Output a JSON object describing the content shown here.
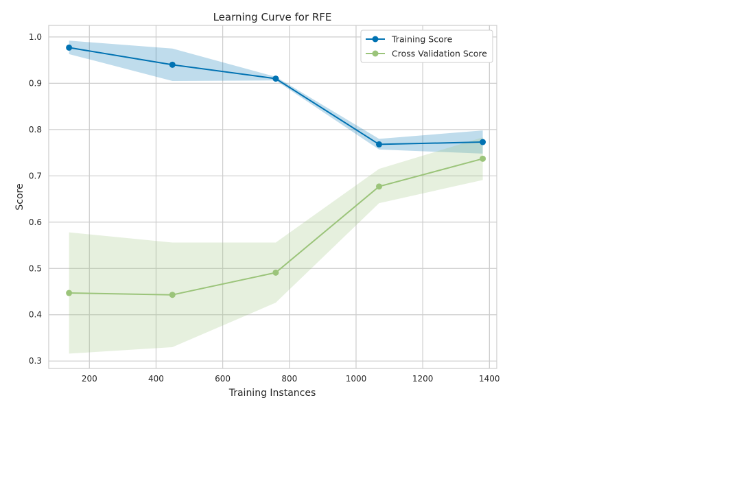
{
  "chart_data": {
    "type": "line",
    "title": "Learning Curve for RFE",
    "xlabel": "Training Instances",
    "ylabel": "Score",
    "xlim": [
      78,
      1422
    ],
    "ylim": [
      0.284,
      1.025
    ],
    "xticks": [
      200,
      400,
      600,
      800,
      1000,
      1200,
      1400
    ],
    "yticks": [
      0.3,
      0.4,
      0.5,
      0.6,
      0.7,
      0.8,
      0.9,
      1.0
    ],
    "xtick_labels": [
      "200",
      "400",
      "600",
      "800",
      "1000",
      "1200",
      "1400"
    ],
    "ytick_labels": [
      "0.3",
      "0.4",
      "0.5",
      "0.6",
      "0.7",
      "0.8",
      "0.9",
      "1.0"
    ],
    "grid": true,
    "legend_position": "top-right",
    "x": [
      139,
      449,
      759,
      1069,
      1380
    ],
    "series": [
      {
        "name": "Training Score",
        "color": "#0072b2",
        "values": [
          0.977,
          0.94,
          0.91,
          0.768,
          0.773
        ],
        "band_upper": [
          0.992,
          0.975,
          0.914,
          0.78,
          0.798
        ],
        "band_lower": [
          0.963,
          0.905,
          0.906,
          0.757,
          0.748
        ]
      },
      {
        "name": "Cross Validation Score",
        "color": "#9bc47a",
        "values": [
          0.447,
          0.443,
          0.491,
          0.677,
          0.737
        ],
        "band_upper": [
          0.578,
          0.556,
          0.556,
          0.715,
          0.783
        ],
        "band_lower": [
          0.316,
          0.33,
          0.426,
          0.641,
          0.691
        ]
      }
    ]
  }
}
